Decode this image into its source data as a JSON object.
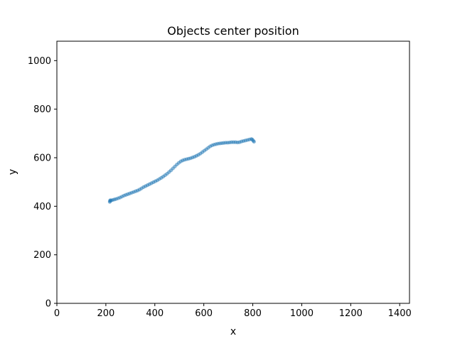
{
  "chart_data": {
    "type": "scatter",
    "title": "Objects center position",
    "xlabel": "x",
    "ylabel": "y",
    "xlim": [
      0,
      1440
    ],
    "ylim": [
      0,
      1080
    ],
    "xticks": [
      0,
      200,
      400,
      600,
      800,
      1000,
      1200,
      1400
    ],
    "yticks": [
      0,
      200,
      400,
      600,
      800,
      1000
    ],
    "grid": false,
    "legend": "none",
    "series": [
      {
        "color": "#1f77b4",
        "points": [
          [
            216,
            418
          ],
          [
            217,
            422
          ],
          [
            218,
            425
          ],
          [
            222,
            424
          ],
          [
            228,
            426
          ],
          [
            235,
            428
          ],
          [
            242,
            430
          ],
          [
            250,
            433
          ],
          [
            258,
            436
          ],
          [
            266,
            440
          ],
          [
            274,
            444
          ],
          [
            282,
            447
          ],
          [
            290,
            450
          ],
          [
            298,
            453
          ],
          [
            306,
            456
          ],
          [
            314,
            459
          ],
          [
            322,
            462
          ],
          [
            330,
            465
          ],
          [
            338,
            469
          ],
          [
            346,
            474
          ],
          [
            354,
            479
          ],
          [
            362,
            483
          ],
          [
            370,
            487
          ],
          [
            378,
            491
          ],
          [
            386,
            495
          ],
          [
            394,
            499
          ],
          [
            402,
            503
          ],
          [
            410,
            507
          ],
          [
            418,
            512
          ],
          [
            426,
            517
          ],
          [
            434,
            522
          ],
          [
            442,
            528
          ],
          [
            450,
            534
          ],
          [
            458,
            541
          ],
          [
            466,
            548
          ],
          [
            474,
            556
          ],
          [
            482,
            564
          ],
          [
            490,
            572
          ],
          [
            498,
            579
          ],
          [
            506,
            585
          ],
          [
            514,
            589
          ],
          [
            522,
            592
          ],
          [
            530,
            594
          ],
          [
            538,
            596
          ],
          [
            546,
            598
          ],
          [
            554,
            601
          ],
          [
            562,
            604
          ],
          [
            570,
            608
          ],
          [
            578,
            612
          ],
          [
            586,
            617
          ],
          [
            594,
            623
          ],
          [
            602,
            629
          ],
          [
            610,
            635
          ],
          [
            618,
            641
          ],
          [
            626,
            647
          ],
          [
            634,
            651
          ],
          [
            642,
            654
          ],
          [
            650,
            656
          ],
          [
            658,
            658
          ],
          [
            666,
            659
          ],
          [
            674,
            660
          ],
          [
            682,
            661
          ],
          [
            690,
            662
          ],
          [
            698,
            662
          ],
          [
            706,
            663
          ],
          [
            714,
            664
          ],
          [
            722,
            664
          ],
          [
            730,
            664
          ],
          [
            738,
            663
          ],
          [
            746,
            664
          ],
          [
            754,
            667
          ],
          [
            762,
            669
          ],
          [
            770,
            671
          ],
          [
            778,
            673
          ],
          [
            786,
            675
          ],
          [
            794,
            677
          ],
          [
            798,
            675
          ],
          [
            802,
            670
          ],
          [
            805,
            666
          ]
        ]
      }
    ]
  }
}
